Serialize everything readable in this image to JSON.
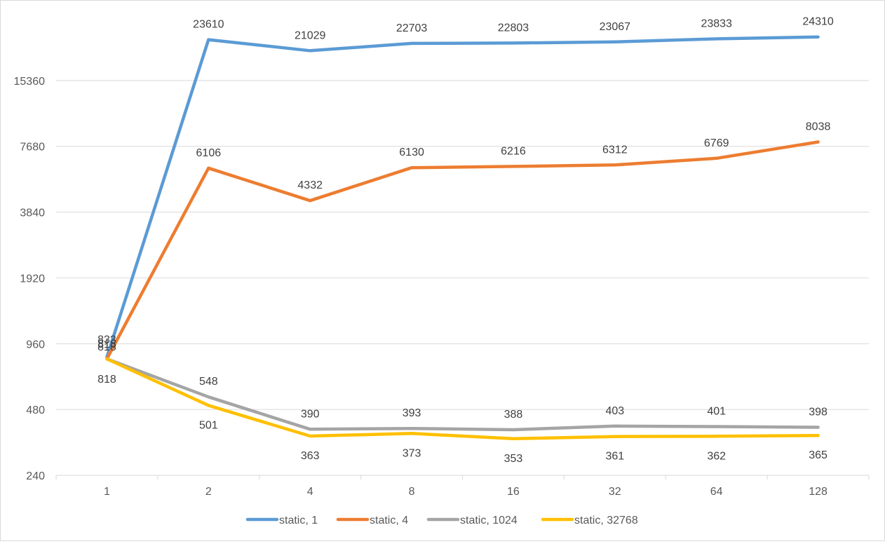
{
  "chart_data": {
    "type": "line",
    "title": "",
    "xlabel": "",
    "ylabel": "",
    "y_scale": "log2",
    "ylim": [
      240,
      30720
    ],
    "y_ticks": [
      240,
      480,
      960,
      1920,
      3840,
      7680,
      15360
    ],
    "grid": true,
    "legend_position": "bottom",
    "categories": [
      "1",
      "2",
      "4",
      "8",
      "16",
      "32",
      "64",
      "128"
    ],
    "series": [
      {
        "name": "static, 1",
        "color": "#5b9bd5",
        "values": [
          833,
          23610,
          21029,
          22703,
          22803,
          23067,
          23833,
          24310
        ],
        "labels": [
          "833",
          "23610",
          "21029",
          "22703",
          "22803",
          "23067",
          "23833",
          "24310"
        ]
      },
      {
        "name": "static, 4",
        "color": "#ed7d31",
        "values": [
          818,
          6106,
          4332,
          6130,
          6216,
          6312,
          6769,
          8038
        ],
        "labels": [
          "818",
          "6106",
          "4332",
          "6130",
          "6216",
          "6312",
          "6769",
          "8038"
        ]
      },
      {
        "name": "static, 1024",
        "color": "#a5a5a5",
        "values": [
          818,
          548,
          390,
          393,
          388,
          403,
          401,
          398
        ],
        "labels": [
          "818",
          "548",
          "390",
          "393",
          "388",
          "403",
          "401",
          "398"
        ]
      },
      {
        "name": "static, 32768",
        "color": "#ffc000",
        "values": [
          818,
          501,
          363,
          373,
          353,
          361,
          362,
          365
        ],
        "labels": [
          "818",
          "501",
          "363",
          "373",
          "353",
          "361",
          "362",
          "365"
        ]
      }
    ]
  }
}
